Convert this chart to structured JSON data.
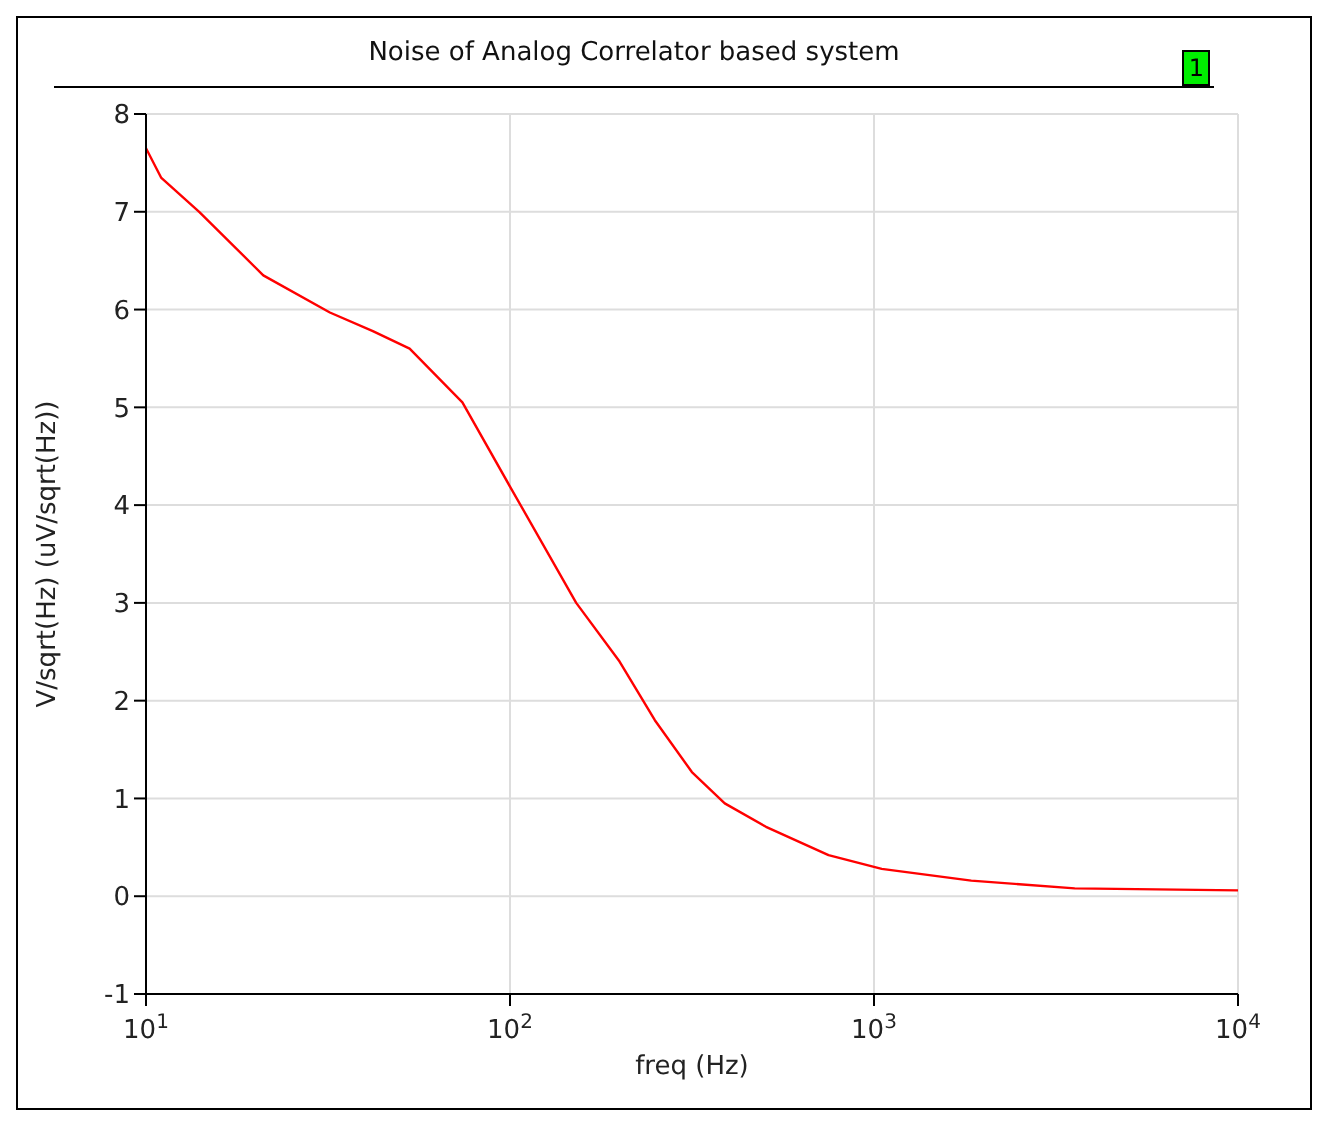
{
  "chart_data": {
    "type": "line",
    "title": "Noise of Analog Correlator based system",
    "xlabel": "freq (Hz)",
    "ylabel": "V/sqrt(Hz) (uV/sqrt(Hz))",
    "annotations": [
      "1"
    ],
    "log": "x",
    "grid": true,
    "marker": "none",
    "line_style": "solid",
    "xlim": [
      10,
      10000
    ],
    "xticks": [
      {
        "value": 10,
        "label": "10$^{1}$"
      },
      {
        "value": 100,
        "label": "10$^{2}$"
      },
      {
        "value": 1000,
        "label": "10$^{3}$"
      },
      {
        "value": 10000,
        "label": "10$^{4}$"
      }
    ],
    "ylim": [
      -1,
      8
    ],
    "yticks": [
      -1,
      0,
      1,
      2,
      3,
      4,
      5,
      6,
      7,
      8
    ],
    "x": [
      10,
      11,
      14,
      21,
      32,
      42,
      53,
      74,
      100,
      152,
      200,
      250,
      316,
      389,
      505,
      750,
      1050,
      1850,
      3560,
      10000
    ],
    "series": [
      {
        "color": "#ff0000",
        "values": [
          7.65,
          7.35,
          7.0,
          6.35,
          5.97,
          5.78,
          5.6,
          5.05,
          4.19,
          3.0,
          2.4,
          1.8,
          1.27,
          0.95,
          0.71,
          0.42,
          0.28,
          0.16,
          0.08,
          0.06
        ]
      }
    ]
  }
}
